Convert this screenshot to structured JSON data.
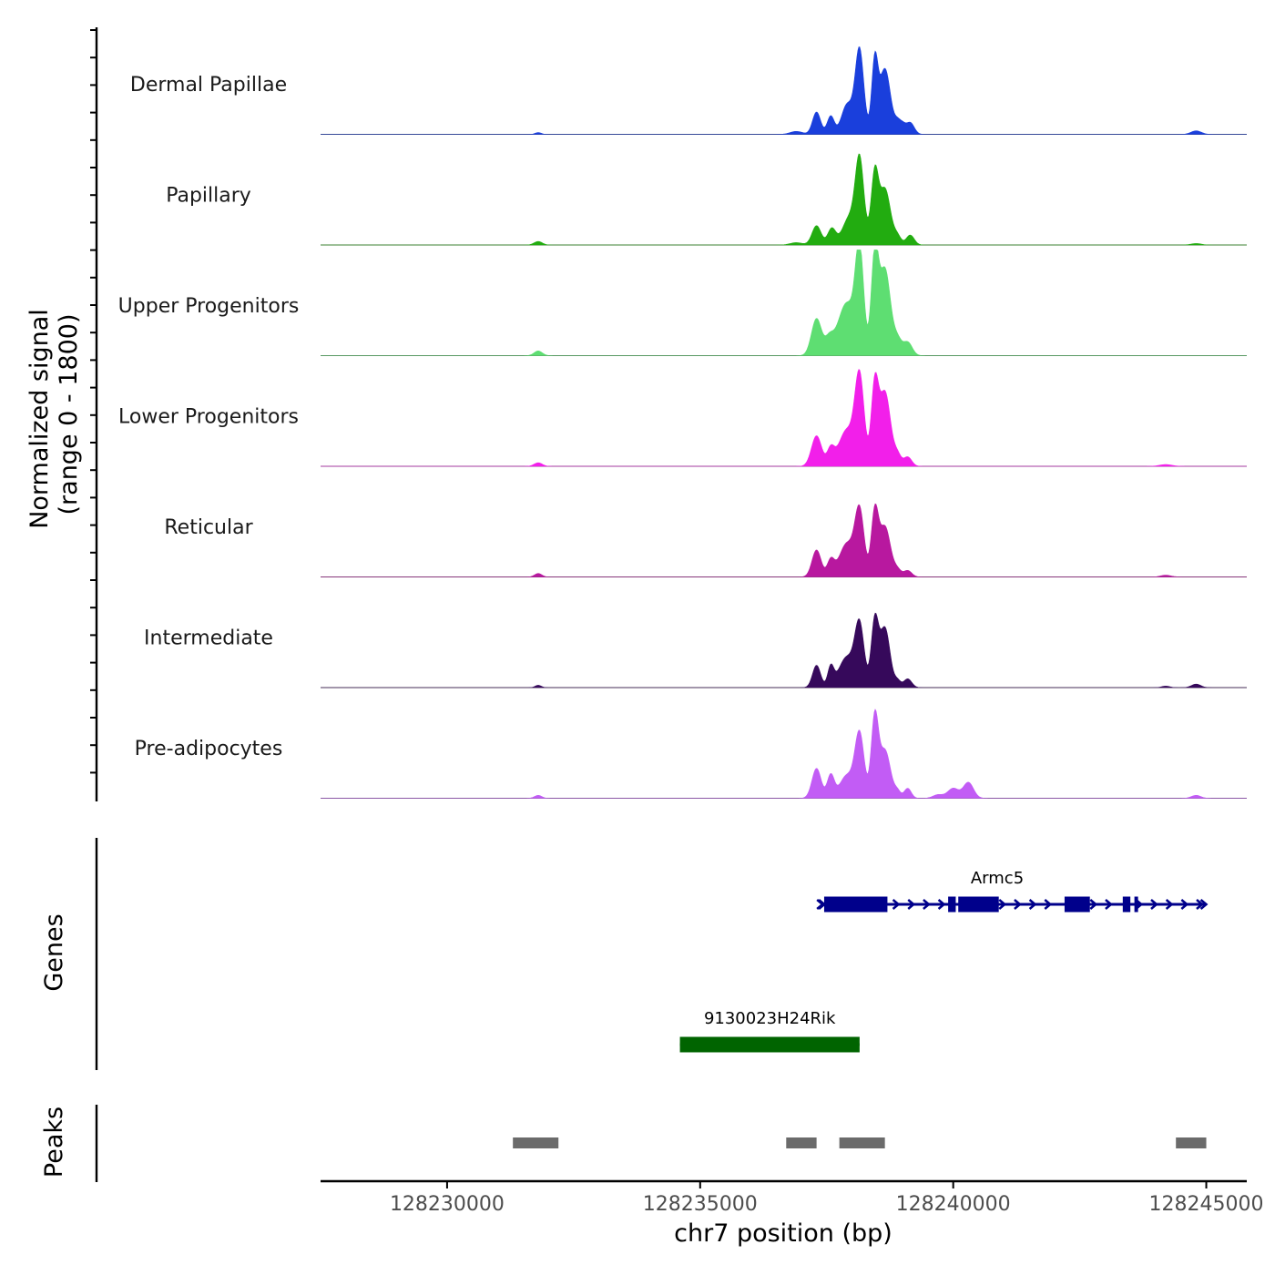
{
  "chart_data": {
    "type": "area",
    "title": "",
    "chromosome": "chr7",
    "xlabel": "chr7 position (bp)",
    "xlim": [
      128227500,
      128245800
    ],
    "xticks": [
      128230000,
      128235000,
      128240000,
      128245000
    ],
    "xtick_labels": [
      "128230000",
      "128235000",
      "128240000",
      "128245000"
    ],
    "signal_axis": {
      "ylabel_line1": "Normalized signal",
      "ylabel_line2": "(range 0 - 1800)",
      "ylim": [
        0,
        1800
      ]
    },
    "tracks": [
      {
        "name": "Dermal Papillae",
        "color": "#1a3fdc",
        "peaks": [
          [
            128231800,
            30,
            60
          ],
          [
            128236900,
            50,
            120
          ],
          [
            128237300,
            380,
            80
          ],
          [
            128237580,
            310,
            70
          ],
          [
            128237880,
            320,
            100
          ],
          [
            128238050,
            320,
            160
          ],
          [
            128238150,
            1220,
            80
          ],
          [
            128238450,
            1170,
            60
          ],
          [
            128238650,
            1120,
            110
          ],
          [
            128238900,
            170,
            60
          ],
          [
            128239000,
            140,
            60
          ],
          [
            128239150,
            200,
            80
          ],
          [
            128244800,
            60,
            100
          ]
        ]
      },
      {
        "name": "Papillary",
        "color": "#22ac10",
        "peaks": [
          [
            128231800,
            60,
            80
          ],
          [
            128236900,
            40,
            120
          ],
          [
            128237300,
            330,
            90
          ],
          [
            128237600,
            280,
            80
          ],
          [
            128237900,
            280,
            120
          ],
          [
            128238100,
            400,
            150
          ],
          [
            128238150,
            1140,
            80
          ],
          [
            128238450,
            1140,
            70
          ],
          [
            128238650,
            960,
            110
          ],
          [
            128238900,
            140,
            70
          ],
          [
            128239150,
            170,
            80
          ],
          [
            128244800,
            25,
            100
          ]
        ]
      },
      {
        "name": "Upper Progenitors",
        "color": "#5ede72",
        "peaks": [
          [
            128231800,
            80,
            80
          ],
          [
            128237300,
            630,
            100
          ],
          [
            128237550,
            230,
            80
          ],
          [
            128237900,
            900,
            180
          ],
          [
            128238150,
            1640,
            80
          ],
          [
            128238450,
            1640,
            70
          ],
          [
            128238650,
            1480,
            110
          ],
          [
            128238900,
            250,
            80
          ],
          [
            128239100,
            230,
            90
          ]
        ]
      },
      {
        "name": "Lower Progenitors",
        "color": "#f21fea",
        "peaks": [
          [
            128231800,
            60,
            80
          ],
          [
            128237300,
            520,
            100
          ],
          [
            128237580,
            270,
            70
          ],
          [
            128237900,
            620,
            160
          ],
          [
            128238150,
            1460,
            90
          ],
          [
            128238450,
            1320,
            70
          ],
          [
            128238650,
            1270,
            110
          ],
          [
            128238900,
            180,
            70
          ],
          [
            128239100,
            160,
            80
          ],
          [
            128244200,
            30,
            120
          ]
        ]
      },
      {
        "name": "Reticular",
        "color": "#b8189f",
        "peaks": [
          [
            128231800,
            60,
            70
          ],
          [
            128237300,
            460,
            90
          ],
          [
            128237580,
            270,
            70
          ],
          [
            128237900,
            570,
            150
          ],
          [
            128238150,
            1080,
            90
          ],
          [
            128238450,
            1060,
            70
          ],
          [
            128238650,
            860,
            110
          ],
          [
            128238900,
            110,
            70
          ],
          [
            128239100,
            110,
            80
          ],
          [
            128244200,
            30,
            100
          ]
        ]
      },
      {
        "name": "Intermediate",
        "color": "#36095b",
        "peaks": [
          [
            128231800,
            40,
            60
          ],
          [
            128237300,
            380,
            80
          ],
          [
            128237580,
            330,
            60
          ],
          [
            128237900,
            520,
            160
          ],
          [
            128238150,
            1010,
            90
          ],
          [
            128238450,
            1110,
            70
          ],
          [
            128238650,
            1020,
            100
          ],
          [
            128238900,
            110,
            60
          ],
          [
            128239100,
            150,
            80
          ],
          [
            128244200,
            25,
            80
          ],
          [
            128244800,
            60,
            90
          ]
        ]
      },
      {
        "name": "Pre-adipocytes",
        "color": "#c25cf5",
        "peaks": [
          [
            128231800,
            50,
            70
          ],
          [
            128237300,
            510,
            90
          ],
          [
            128237580,
            390,
            70
          ],
          [
            128237900,
            390,
            140
          ],
          [
            128238150,
            1080,
            90
          ],
          [
            128238450,
            1340,
            70
          ],
          [
            128238650,
            820,
            110
          ],
          [
            128238900,
            110,
            60
          ],
          [
            128239100,
            170,
            70
          ],
          [
            128239700,
            60,
            100
          ],
          [
            128240000,
            170,
            110
          ],
          [
            128240300,
            270,
            100
          ],
          [
            128244800,
            50,
            90
          ]
        ]
      }
    ],
    "genes_panel": {
      "label": "Genes",
      "genes": [
        {
          "name": "Armc5",
          "color": "#00008b",
          "strand": "+",
          "start": 128237400,
          "end": 128245000,
          "exons": [
            [
              128237450,
              128238700
            ],
            [
              128239900,
              128240050
            ],
            [
              128240100,
              128240900
            ],
            [
              128242200,
              128242700
            ],
            [
              128243350,
              128243500
            ],
            [
              128243580,
              128243620
            ]
          ]
        },
        {
          "name": "9130023H24Rik",
          "color": "#006400",
          "strand": "",
          "start": 128234600,
          "end": 128238150,
          "exons": [
            [
              128234600,
              128238150
            ]
          ]
        }
      ]
    },
    "peaks_panel": {
      "label": "Peaks",
      "color": "#6b6b6b",
      "regions": [
        [
          128231300,
          128232200
        ],
        [
          128236700,
          128237300
        ],
        [
          128237750,
          128238650
        ],
        [
          128244400,
          128245000
        ]
      ]
    }
  }
}
